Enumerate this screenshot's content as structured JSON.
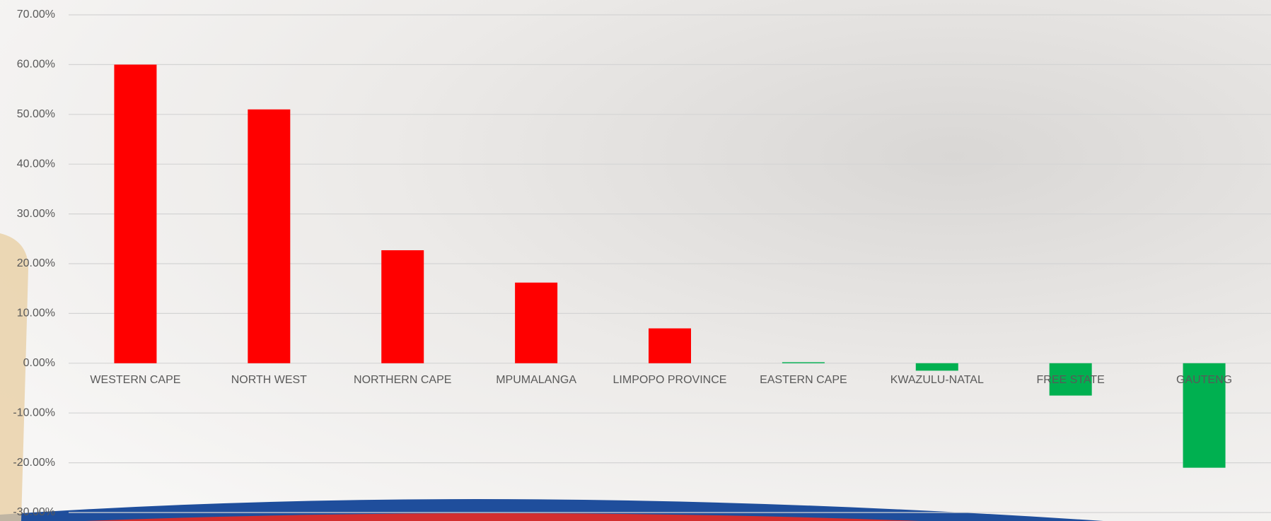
{
  "chart_data": {
    "type": "bar",
    "categories": [
      "WESTERN CAPE",
      "NORTH WEST",
      "NORTHERN CAPE",
      "MPUMALANGA",
      "LIMPOPO PROVINCE",
      "EASTERN CAPE",
      "KWAZULU-NATAL",
      "FREE STATE",
      "GAUTENG"
    ],
    "values": [
      60,
      51,
      22.7,
      16.2,
      7,
      0.2,
      -1.5,
      -6.5,
      -21
    ],
    "colors": [
      "#ff0000",
      "#ff0000",
      "#ff0000",
      "#ff0000",
      "#ff0000",
      "#00b050",
      "#00b050",
      "#00b050",
      "#00b050"
    ],
    "ylim": [
      -30,
      70
    ],
    "yticks": [
      {
        "value": -30,
        "label": "-30.00%"
      },
      {
        "value": -20,
        "label": "-20.00%"
      },
      {
        "value": -10,
        "label": "-10.00%"
      },
      {
        "value": 0,
        "label": "0.00%"
      },
      {
        "value": 10,
        "label": "10.00%"
      },
      {
        "value": 20,
        "label": "20.00%"
      },
      {
        "value": 30,
        "label": "30.00%"
      },
      {
        "value": 40,
        "label": "40.00%"
      },
      {
        "value": 50,
        "label": "50.00%"
      },
      {
        "value": 60,
        "label": "60.00%"
      },
      {
        "value": 70,
        "label": "70.00%"
      }
    ],
    "grid": true
  }
}
